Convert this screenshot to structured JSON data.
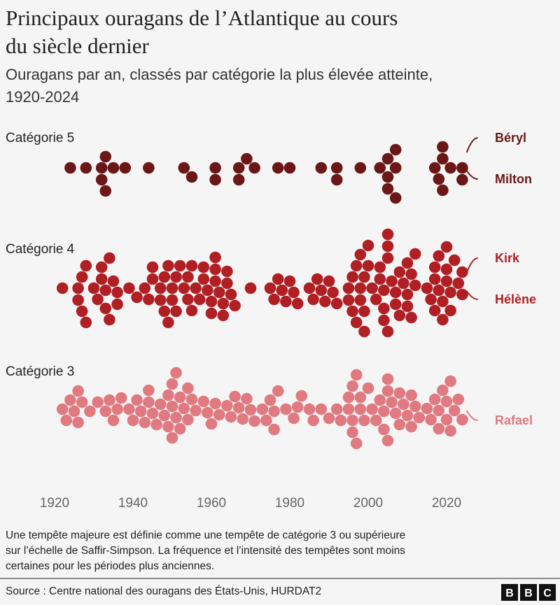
{
  "chart_data": {
    "type": "beeswarm",
    "title": [
      "Principaux ouragans de l’Atlantique au cours",
      "du siècle dernier"
    ],
    "subtitle": [
      "Ouragans par an, classés par catégorie la plus élevée atteinte,",
      "1920-2024"
    ],
    "xlim": [
      1915,
      2030
    ],
    "xticks": [
      1920,
      1940,
      1960,
      1980,
      2000,
      2020
    ],
    "series": [
      {
        "name": "Catégorie 5",
        "color": "#6b1717",
        "labels": [
          "Béryl",
          "Milton"
        ],
        "x": [
          1924,
          1928,
          1932,
          1932,
          1933,
          1933,
          1935,
          1938,
          1944,
          1953,
          1955,
          1961,
          1961,
          1967,
          1967,
          1969,
          1971,
          1977,
          1980,
          1988,
          1992,
          1992,
          1998,
          2003,
          2005,
          2005,
          2005,
          2007,
          2007,
          2007,
          2017,
          2018,
          2019,
          2019,
          2019,
          2021,
          2024,
          2024
        ]
      },
      {
        "name": "Catégorie 4",
        "color": "#b01f24",
        "labels": [
          "Kirk",
          "Hélène"
        ],
        "x": [
          1922,
          1926,
          1926,
          1927,
          1927,
          1928,
          1928,
          1930,
          1931,
          1932,
          1932,
          1933,
          1933,
          1934,
          1934,
          1935,
          1936,
          1936,
          1939,
          1941,
          1943,
          1944,
          1945,
          1945,
          1947,
          1947,
          1948,
          1948,
          1949,
          1949,
          1950,
          1950,
          1951,
          1951,
          1952,
          1953,
          1954,
          1954,
          1955,
          1955,
          1956,
          1957,
          1958,
          1958,
          1959,
          1960,
          1960,
          1961,
          1961,
          1961,
          1962,
          1963,
          1963,
          1964,
          1964,
          1965,
          1966,
          1970,
          1975,
          1976,
          1977,
          1978,
          1979,
          1980,
          1981,
          1982,
          1985,
          1986,
          1987,
          1988,
          1989,
          1990,
          1991,
          1992,
          1995,
          1995,
          1996,
          1996,
          1997,
          1997,
          1998,
          1998,
          1998,
          1999,
          1999,
          1999,
          2000,
          2000,
          2001,
          2002,
          2003,
          2003,
          2004,
          2004,
          2004,
          2005,
          2005,
          2005,
          2005,
          2006,
          2007,
          2007,
          2008,
          2008,
          2009,
          2010,
          2010,
          2010,
          2011,
          2011,
          2012,
          2012,
          2015,
          2016,
          2017,
          2017,
          2017,
          2018,
          2018,
          2019,
          2019,
          2020,
          2020,
          2020,
          2021,
          2021,
          2022,
          2023,
          2024,
          2024
        ]
      },
      {
        "name": "Catégorie 3",
        "color": "#e07a80",
        "labels": [
          "Rafael"
        ],
        "x": [
          1922,
          1923,
          1924,
          1925,
          1926,
          1926,
          1927,
          1929,
          1931,
          1933,
          1934,
          1935,
          1936,
          1937,
          1939,
          1940,
          1941,
          1942,
          1943,
          1944,
          1944,
          1945,
          1946,
          1947,
          1948,
          1949,
          1949,
          1950,
          1950,
          1950,
          1951,
          1951,
          1952,
          1952,
          1953,
          1954,
          1954,
          1955,
          1956,
          1958,
          1959,
          1960,
          1961,
          1962,
          1964,
          1965,
          1966,
          1967,
          1968,
          1969,
          1970,
          1971,
          1973,
          1974,
          1975,
          1976,
          1976,
          1977,
          1979,
          1981,
          1982,
          1983,
          1985,
          1986,
          1988,
          1990,
          1992,
          1993,
          1995,
          1995,
          1996,
          1996,
          1996,
          1997,
          1997,
          1998,
          1998,
          1999,
          2000,
          2001,
          2002,
          2003,
          2004,
          2004,
          2005,
          2005,
          2005,
          2006,
          2007,
          2008,
          2008,
          2009,
          2010,
          2011,
          2011,
          2012,
          2013,
          2015,
          2016,
          2017,
          2018,
          2018,
          2019,
          2020,
          2020,
          2021,
          2021,
          2022,
          2023,
          2024
        ]
      }
    ],
    "note": [
      "Une tempête majeure est définie comme une tempête de catégorie 3 ou supérieure",
      "sur l’échelle de Saffir-Simpson. La fréquence et l’intensité des tempêtes sont moins",
      "certaines pour les périodes plus anciennes."
    ],
    "source": "Source : Centre national des ouragans des États-Unis, HURDAT2",
    "brand": [
      "B",
      "B",
      "C"
    ]
  }
}
